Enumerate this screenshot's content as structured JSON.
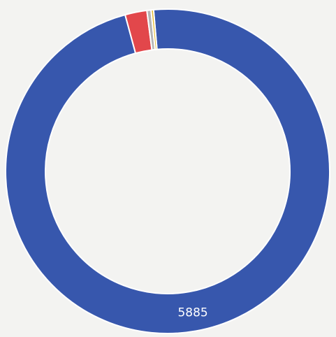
{
  "chart_data": {
    "type": "donut",
    "values": [
      5885,
      132,
      25,
      15
    ],
    "colors": [
      "#3757ad",
      "#e2474b",
      "#b5b5b5",
      "#e5bd35"
    ],
    "labeled": [
      0
    ]
  }
}
